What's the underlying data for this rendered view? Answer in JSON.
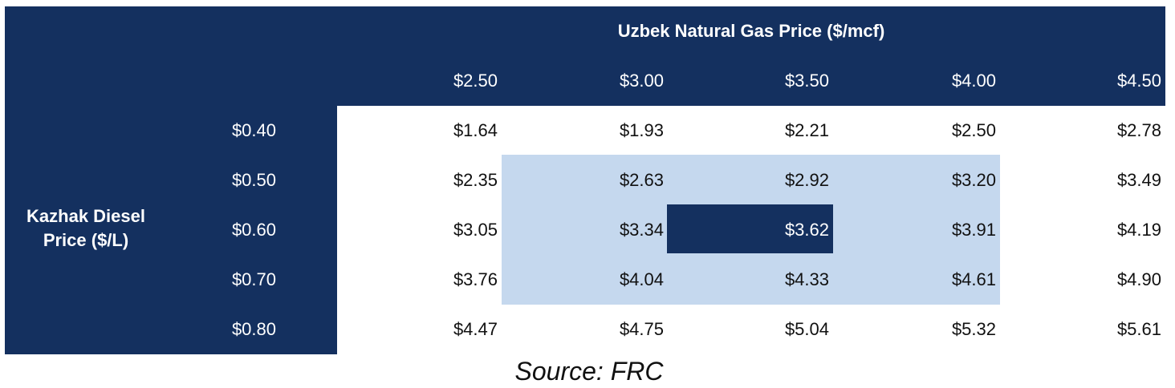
{
  "table": {
    "title": "Uzbek Natural Gas Price ($/mcf)",
    "column_headers": [
      "$2.50",
      "$3.00",
      "$3.50",
      "$4.00",
      "$4.50"
    ],
    "row_header": "Kazhak Diesel Price ($/L)",
    "rows": [
      {
        "label": "$0.40",
        "values": [
          "$1.64",
          "$1.93",
          "$2.21",
          "$2.50",
          "$2.78"
        ]
      },
      {
        "label": "$0.50",
        "values": [
          "$2.35",
          "$2.63",
          "$2.92",
          "$3.20",
          "$3.49"
        ]
      },
      {
        "label": "$0.60",
        "values": [
          "$3.05",
          "$3.34",
          "$3.62",
          "$3.91",
          "$4.19"
        ]
      },
      {
        "label": "$0.70",
        "values": [
          "$3.76",
          "$4.04",
          "$4.33",
          "$4.61",
          "$4.90"
        ]
      },
      {
        "label": "$0.80",
        "values": [
          "$4.47",
          "$4.75",
          "$5.04",
          "$5.32",
          "$5.61"
        ]
      }
    ]
  },
  "source": "Source: FRC"
}
